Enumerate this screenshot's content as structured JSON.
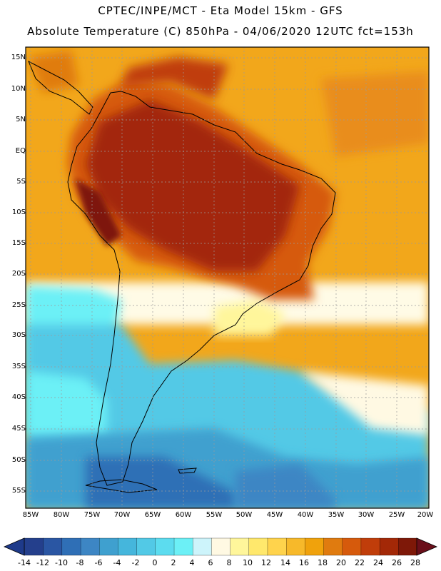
{
  "header": {
    "title_line1": "CPTEC/INPE/MCT  -   Eta Model 15km  -  GFS",
    "title_line2": "Absolute Temperature (C) 850hPa - 04/06/2020 12UTC fct=153h"
  },
  "map": {
    "region": "South America",
    "lat_ticks": [
      "15N",
      "10N",
      "5N",
      "EQ",
      "5S",
      "10S",
      "15S",
      "20S",
      "25S",
      "30S",
      "35S",
      "40S",
      "45S",
      "50S",
      "55S"
    ],
    "lon_ticks": [
      "85W",
      "80W",
      "75W",
      "70W",
      "65W",
      "60W",
      "55W",
      "50W",
      "45W",
      "40W",
      "35W",
      "30W",
      "25W",
      "20W"
    ]
  },
  "colorbar": {
    "labels": [
      "-14",
      "-12",
      "-10",
      "-8",
      "-6",
      "-4",
      "-2",
      "0",
      "2",
      "4",
      "6",
      "8",
      "10",
      "12",
      "14",
      "16",
      "18",
      "20",
      "22",
      "24",
      "26",
      "28"
    ],
    "colors": [
      "#243f8c",
      "#2a56a3",
      "#2f6fb6",
      "#3d86c4",
      "#3fa0cf",
      "#45b6dc",
      "#52c9e6",
      "#5cdcef",
      "#6cf0f6",
      "#cdf4fb",
      "#fff9e3",
      "#fff69b",
      "#ffe86c",
      "#ffd34c",
      "#f7b92a",
      "#f0a20c",
      "#e07b0f",
      "#d65a0c",
      "#c03d0a",
      "#a32807",
      "#7e1808"
    ]
  }
}
